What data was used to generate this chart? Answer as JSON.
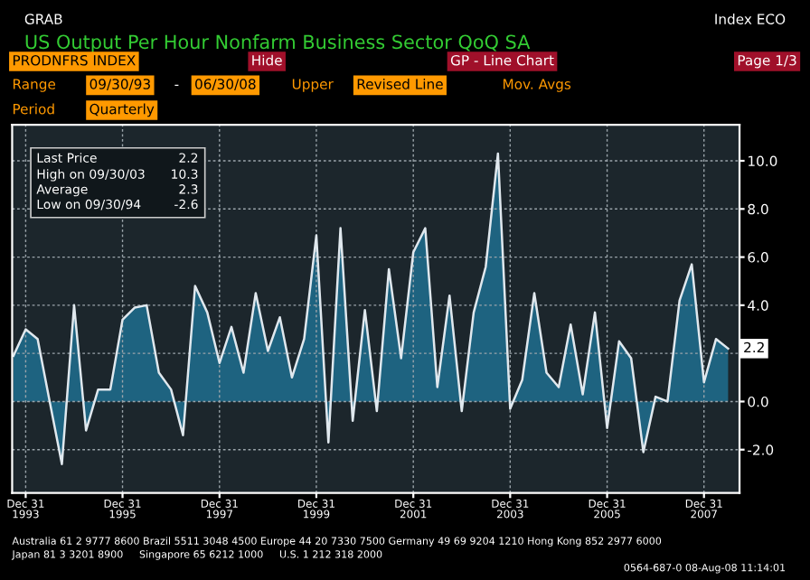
{
  "chart_data": {
    "type": "area",
    "title": "US Output Per Hour Nonfarm Business Sector QoQ SA",
    "x": [
      "1993-09-30",
      "1993-12-31",
      "1994-03-31",
      "1994-06-30",
      "1994-09-30",
      "1994-12-31",
      "1995-03-31",
      "1995-06-30",
      "1995-09-30",
      "1995-12-31",
      "1996-03-31",
      "1996-06-30",
      "1996-09-30",
      "1996-12-31",
      "1997-03-31",
      "1997-06-30",
      "1997-09-30",
      "1997-12-31",
      "1998-03-31",
      "1998-06-30",
      "1998-09-30",
      "1998-12-31",
      "1999-03-31",
      "1999-06-30",
      "1999-09-30",
      "1999-12-31",
      "2000-03-31",
      "2000-06-30",
      "2000-09-30",
      "2000-12-31",
      "2001-03-31",
      "2001-06-30",
      "2001-09-30",
      "2001-12-31",
      "2002-03-31",
      "2002-06-30",
      "2002-09-30",
      "2002-12-31",
      "2003-03-31",
      "2003-06-30",
      "2003-09-30",
      "2003-12-31",
      "2004-03-31",
      "2004-06-30",
      "2004-09-30",
      "2004-12-31",
      "2005-03-31",
      "2005-06-30",
      "2005-09-30",
      "2005-12-31",
      "2006-03-31",
      "2006-06-30",
      "2006-09-30",
      "2006-12-31",
      "2007-03-31",
      "2007-06-30",
      "2007-09-30",
      "2007-12-31",
      "2008-03-31",
      "2008-06-30"
    ],
    "series": [
      {
        "color": "#1f6f8f",
        "values": [
          1.9,
          3.0,
          2.6,
          0.0,
          -2.6,
          4.0,
          -1.2,
          0.5,
          0.5,
          3.4,
          3.9,
          4.0,
          1.2,
          0.5,
          -1.4,
          4.8,
          3.7,
          1.6,
          3.1,
          1.2,
          4.5,
          2.1,
          3.5,
          1.0,
          2.6,
          6.9,
          -1.7,
          7.2,
          -0.8,
          3.8,
          -0.4,
          5.5,
          1.8,
          6.2,
          7.2,
          0.6,
          4.4,
          -0.4,
          3.7,
          5.6,
          10.3,
          -0.3,
          0.9,
          4.5,
          1.2,
          0.6,
          3.2,
          0.3,
          3.7,
          -1.1,
          2.5,
          1.8,
          -2.1,
          0.2,
          0.0,
          4.2,
          5.7,
          0.8,
          2.6,
          2.2
        ]
      }
    ],
    "xlim": [
      "1993-09-20",
      "2008-09-24"
    ],
    "xticks": [
      {
        "value": "1993-12-31",
        "label": "Dec 31\n1993"
      },
      {
        "value": "1995-12-31",
        "label": "Dec 31\n1995"
      },
      {
        "value": "1997-12-31",
        "label": "Dec 31\n1997"
      },
      {
        "value": "1999-12-31",
        "label": "Dec 31\n1999"
      },
      {
        "value": "2001-12-31",
        "label": "Dec 31\n2001"
      },
      {
        "value": "2003-12-31",
        "label": "Dec 31\n2003"
      },
      {
        "value": "2005-12-31",
        "label": "Dec 31\n2005"
      },
      {
        "value": "2007-12-31",
        "label": "Dec 31\n2007"
      }
    ],
    "ylim": [
      -3.8,
      11.5
    ],
    "yticks": [
      {
        "value": -2,
        "label": "-2.0"
      },
      {
        "value": 0,
        "label": "0.0"
      },
      {
        "value": 2,
        "label": null
      },
      {
        "value": 4,
        "label": "4.0"
      },
      {
        "value": 6,
        "label": "6.0"
      },
      {
        "value": 8,
        "label": "8.0"
      },
      {
        "value": 10,
        "label": "10.0"
      }
    ],
    "grid": true,
    "annotations": [
      "GRAB",
      "Index ECO",
      "PRODNFRS INDEX",
      "Hide",
      "GP - Line Chart",
      "Page 1/3",
      "Range",
      "09/30/93",
      "-",
      "06/30/08",
      "Upper",
      "Revised Line",
      "Mov. Avgs",
      "Period",
      "Quarterly",
      "Last Price",
      "2.2",
      "High on 09/30/03",
      "10.3",
      "Average",
      "2.3",
      "Low on 09/30/94",
      "-2.6",
      "Australia 61 2 9777 8600 Brazil 5511 3048 4500 Europe 44 20 7330 7500 Germany 49 69 9204 1210 Hong Kong 852 2977 6000",
      "Japan 81 3 3201 8900     Singapore 65 6212 1000     U.S. 1 212 318 2000",
      "0564-687-0 08-Aug-08 11:14:01",
      {
        "text": "2.2",
        "y": 2.2
      }
    ]
  }
}
